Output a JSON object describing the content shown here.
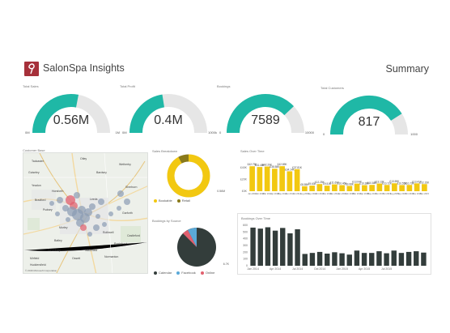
{
  "header": {
    "title": "SalonSpa Insights",
    "summary": "Summary"
  },
  "colors": {
    "teal": "#1fb8a6",
    "gauge_track": "#e6e6e6",
    "brand": "#a6303a",
    "yellow": "#f2c811",
    "dark": "#333d3b"
  },
  "gauges": [
    {
      "title": "Total Sales",
      "value": "0.56M",
      "min": "0M",
      "max": "1M",
      "fraction": 0.56
    },
    {
      "title": "Total Profit",
      "value": "0.4M",
      "min": "0M",
      "max": "1000k",
      "fraction": 0.45
    },
    {
      "title": "Bookings",
      "value": "7589",
      "min": "0",
      "max": "10000",
      "fraction": 0.76
    },
    {
      "title": "Total Customers",
      "value": "817",
      "min": "0",
      "max": "1000",
      "fraction": 0.82
    }
  ],
  "customer_base": {
    "title": "Customer Base",
    "places": [
      "Bradford",
      "Leeds",
      "Yeadon",
      "Guiseley",
      "Horsforth",
      "Pudsey",
      "Morley",
      "Batley",
      "Wakefield",
      "Castleford",
      "Pontefract",
      "Garforth",
      "Wetherby",
      "Bardsey",
      "Otley",
      "Dewsbury",
      "Mirfield",
      "Ossett",
      "Normanton",
      "Rothwell",
      "Huddersfield",
      "Sherburn",
      "Tadcaster"
    ],
    "footer": "© 2016 Microsoft Corporation"
  },
  "sales_breakdown": {
    "title": "Sales Breakdown",
    "value_label": "0.56M",
    "legend": [
      "Bookable",
      "Retail"
    ]
  },
  "bookings_by_source": {
    "title": "Bookings by Source",
    "value_label": "6.7K",
    "legend": [
      "Calendar",
      "Facebook",
      "Online"
    ]
  },
  "chart_data": [
    {
      "type": "bar",
      "title": "Sales Over Time",
      "categories": [
        "Jan 2014",
        "Feb 2014",
        "Mar 2014",
        "Apr 2014",
        "May 2014",
        "Jun 2014",
        "Jul 2014",
        "Aug 2014",
        "Sep 2014",
        "Oct 2014",
        "Nov 2014",
        "Dec 2014",
        "Jan 2015",
        "Feb 2015",
        "Mar 2015",
        "Apr 2015",
        "May 2015",
        "Jun 2015",
        "Jul 2015",
        "Aug 2015",
        "Sep 2015",
        "Oct 2015",
        "Nov 2015",
        "Dec 2015"
      ],
      "values": [
        42.79,
        41.48,
        42.29,
        38.58,
        42.89,
        34.14,
        37.81,
        8.55,
        9.63,
        12.25,
        9.51,
        11.69,
        10.46,
        9.08,
        13.04,
        10.38,
        10.84,
        13.13,
        10.72,
        13.59,
        10.55,
        10.73,
        13.41,
        12.15
      ],
      "data_labels": [
        "£42.79K",
        "£41.48K",
        "£42.29K",
        "£38.58K",
        "£42.89K",
        "£34.14K",
        "£37.81K",
        "£8.55K",
        "£9.63K",
        "£12.25K",
        "£9.51K",
        "£11.69K",
        "£10.46K",
        "£9.08K",
        "£13.04K",
        "£10.38K",
        "£10.84K",
        "£13.13K",
        "£10.72K",
        "£13.59K",
        "£10.55K",
        "£10.73K",
        "£13.41K",
        "£12.15K"
      ],
      "y_ticks": [
        "£0K",
        "£20K",
        "£40K"
      ],
      "ylim": [
        0,
        50
      ]
    },
    {
      "type": "bar",
      "title": "Bookings Over Time",
      "categories": [
        "Jan 2014",
        "Feb 2014",
        "Mar 2014",
        "Apr 2014",
        "May 2014",
        "Jun 2014",
        "Jul 2014",
        "Aug 2014",
        "Sep 2014",
        "Oct 2014",
        "Nov 2014",
        "Dec 2014",
        "Jan 2015",
        "Feb 2015",
        "Mar 2015",
        "Apr 2015",
        "May 2015",
        "Jun 2015",
        "Jul 2015",
        "Aug 2015",
        "Sep 2015",
        "Oct 2015",
        "Nov 2015",
        "Dec 2015"
      ],
      "values": [
        565,
        550,
        570,
        520,
        560,
        480,
        540,
        175,
        190,
        205,
        180,
        200,
        185,
        165,
        225,
        190,
        190,
        215,
        185,
        225,
        190,
        205,
        215,
        195
      ],
      "x_ticks": [
        "Jan 2014",
        "Apr 2014",
        "Jul 2014",
        "Oct 2014",
        "Jan 2015",
        "Apr 2015",
        "Jul 2015"
      ],
      "y_ticks": [
        "0",
        "100",
        "200",
        "300",
        "400",
        "500",
        "600"
      ],
      "ylim": [
        0,
        600
      ]
    }
  ]
}
